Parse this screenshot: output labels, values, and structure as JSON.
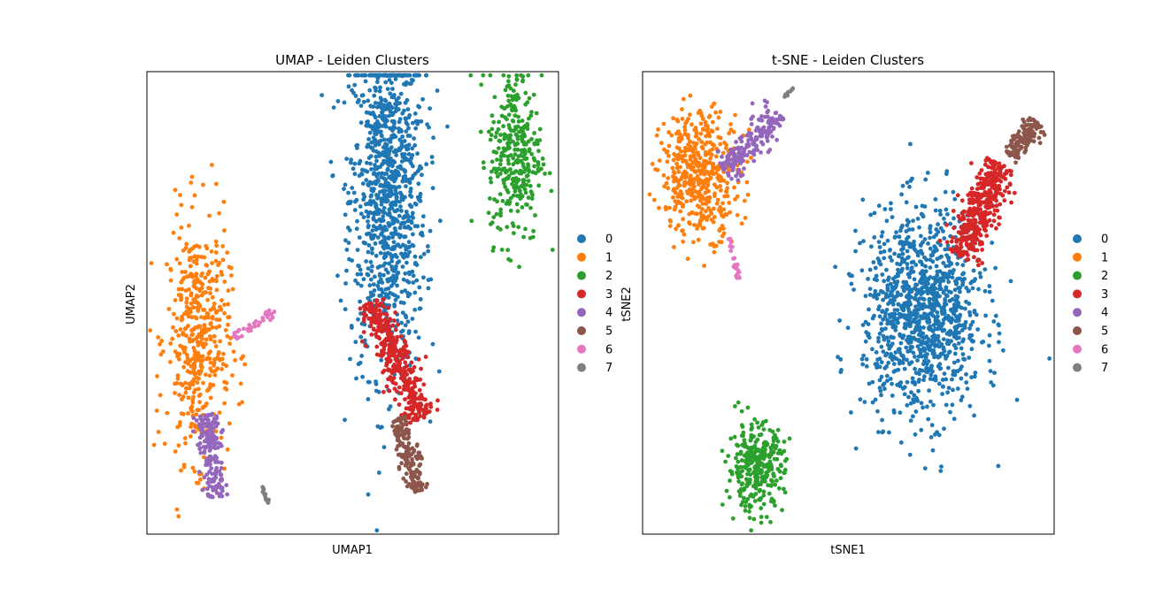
{
  "palette": {
    "0": "#1f77b4",
    "1": "#ff7f0e",
    "2": "#2ca02c",
    "3": "#d62728",
    "4": "#9467bd",
    "5": "#8c564b",
    "6": "#e377c2",
    "7": "#7f7f7f"
  },
  "chart_data": [
    {
      "type": "scatter",
      "title": "UMAP - Leiden Clusters",
      "xlabel": "UMAP1",
      "ylabel": "UMAP2",
      "ticks": "none",
      "grid": false,
      "legend": {
        "placement": "right-outside",
        "entries": [
          "0",
          "1",
          "2",
          "3",
          "4",
          "5",
          "6",
          "7"
        ]
      },
      "xlim": [
        0,
        100
      ],
      "ylim": [
        0,
        100
      ],
      "clusters": [
        {
          "label": "0",
          "n": 1050,
          "shape": "ellipse",
          "center": [
            58.5,
            73
          ],
          "spread": [
            4.6,
            19
          ]
        },
        {
          "label": "1",
          "n": 480,
          "shape": "ellipse",
          "center": [
            12.5,
            42
          ],
          "spread": [
            3.8,
            13
          ]
        },
        {
          "label": "2",
          "n": 330,
          "shape": "ellipse",
          "center": [
            89.5,
            82
          ],
          "spread": [
            3.2,
            9.5
          ]
        },
        {
          "label": "3",
          "n": 360,
          "shape": "line",
          "from": [
            54,
            50
          ],
          "to": [
            67,
            25
          ],
          "width": 3.2
        },
        {
          "label": "4",
          "n": 170,
          "shape": "line",
          "from": [
            14.5,
            26
          ],
          "to": [
            17,
            8
          ],
          "width": 2.5
        },
        {
          "label": "5",
          "n": 170,
          "shape": "line",
          "from": [
            61,
            25
          ],
          "to": [
            66,
            9
          ],
          "width": 2.0
        },
        {
          "label": "6",
          "n": 38,
          "shape": "line",
          "from": [
            20.5,
            42
          ],
          "to": [
            31,
            48
          ],
          "width": 0.9
        },
        {
          "label": "7",
          "n": 14,
          "shape": "line",
          "from": [
            28,
            10.5
          ],
          "to": [
            29.5,
            6.5
          ],
          "width": 0.3
        }
      ]
    },
    {
      "type": "scatter",
      "title": "t-SNE - Leiden Clusters",
      "xlabel": "tSNE1",
      "ylabel": "tSNE2",
      "ticks": "none",
      "grid": false,
      "legend": {
        "placement": "right-outside",
        "entries": [
          "0",
          "1",
          "2",
          "3",
          "4",
          "5",
          "6",
          "7"
        ]
      },
      "xlim": [
        0,
        100
      ],
      "ylim": [
        0,
        100
      ],
      "clusters": [
        {
          "label": "0",
          "n": 1100,
          "shape": "ellipse",
          "center": [
            68,
            48
          ],
          "spread": [
            7.2,
            11
          ]
        },
        {
          "label": "1",
          "n": 470,
          "shape": "ellipse",
          "center": [
            14,
            78
          ],
          "spread": [
            4.8,
            6.8
          ]
        },
        {
          "label": "2",
          "n": 330,
          "shape": "ellipse",
          "center": [
            27.5,
            14.5
          ],
          "spread": [
            3.4,
            4.6
          ]
        },
        {
          "label": "3",
          "n": 380,
          "shape": "line",
          "from": [
            77,
            60
          ],
          "to": [
            87,
            80
          ],
          "width": 3.8
        },
        {
          "label": "4",
          "n": 190,
          "shape": "line",
          "from": [
            20,
            78
          ],
          "to": [
            33,
            91
          ],
          "width": 2.6
        },
        {
          "label": "5",
          "n": 130,
          "shape": "line",
          "from": [
            89,
            82
          ],
          "to": [
            96,
            89
          ],
          "width": 2.0
        },
        {
          "label": "6",
          "n": 22,
          "shape": "line",
          "from": [
            21,
            64
          ],
          "to": [
            23.5,
            55
          ],
          "width": 0.6
        },
        {
          "label": "7",
          "n": 8,
          "shape": "line",
          "from": [
            34.5,
            94.5
          ],
          "to": [
            36.5,
            96.5
          ],
          "width": 0.2
        }
      ]
    }
  ]
}
